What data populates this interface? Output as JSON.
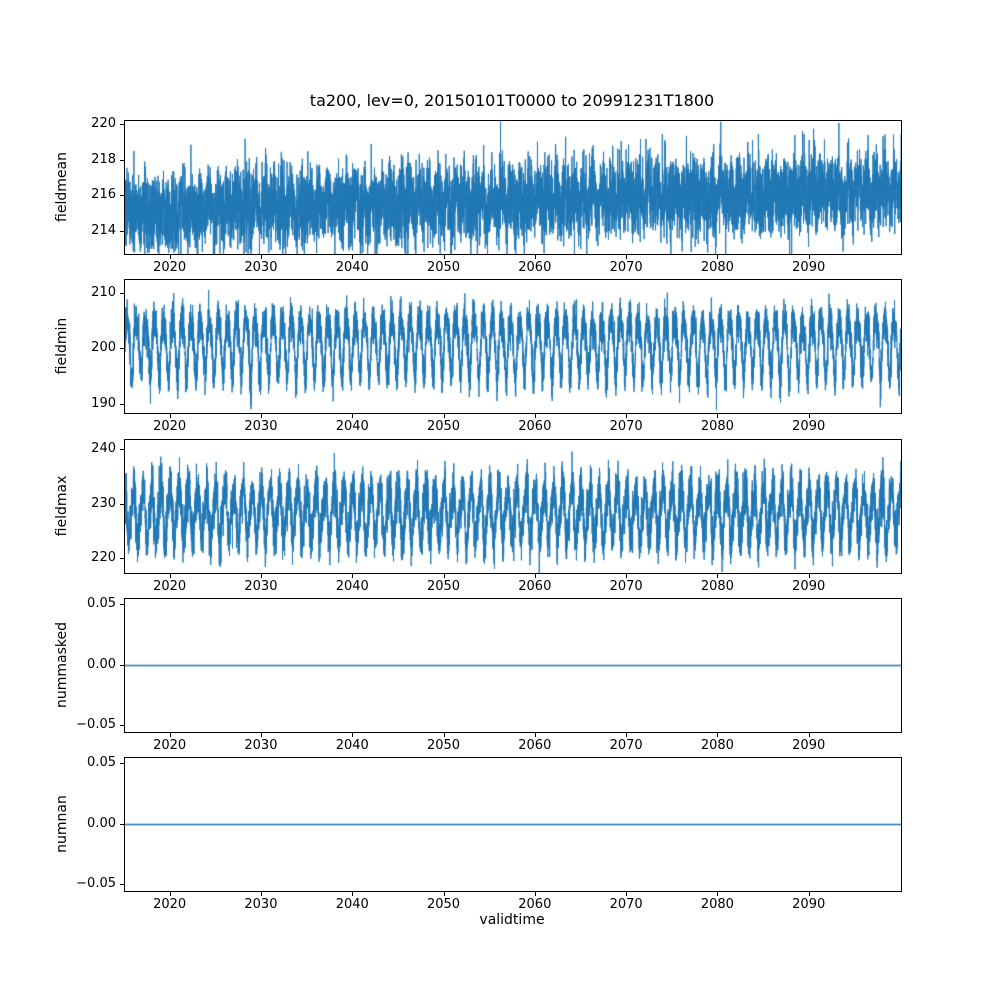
{
  "figure": {
    "title": "ta200, lev=0, 20150101T0000 to 20991231T1800",
    "xlabel": "validtime",
    "line_color": "#1f77b4",
    "xlim": [
      2015,
      2100
    ],
    "xticks": [
      {
        "v": 2020,
        "label": "2020"
      },
      {
        "v": 2030,
        "label": "2030"
      },
      {
        "v": 2040,
        "label": "2040"
      },
      {
        "v": 2050,
        "label": "2050"
      },
      {
        "v": 2060,
        "label": "2060"
      },
      {
        "v": 2070,
        "label": "2070"
      },
      {
        "v": 2080,
        "label": "2080"
      },
      {
        "v": 2090,
        "label": "2090"
      }
    ]
  },
  "chart_data": [
    {
      "type": "line",
      "name": "fieldmean",
      "ylabel": "fieldmean",
      "ylim": [
        212.8,
        220.2
      ],
      "yticks": [
        {
          "v": 214,
          "label": "214"
        },
        {
          "v": 216,
          "label": "216"
        },
        {
          "v": 218,
          "label": "218"
        },
        {
          "v": 220,
          "label": "220"
        }
      ],
      "observed_range": [
        212.8,
        219.8
      ],
      "description": "Dense noisy 6-hourly series around 215.3 rising slightly to about 216.4 by 2099",
      "series_gen": {
        "baseline": 215.2,
        "trend": 0.013,
        "components": [
          {
            "amp": 0.5,
            "freq": 1,
            "phase": 0
          }
        ],
        "noise": 1.05,
        "n": 8000,
        "seed": 101,
        "lw": 1
      }
    },
    {
      "type": "line",
      "name": "fieldmin",
      "ylabel": "fieldmin",
      "ylim": [
        188.5,
        212.5
      ],
      "yticks": [
        {
          "v": 190,
          "label": "190"
        },
        {
          "v": 200,
          "label": "200"
        },
        {
          "v": 210,
          "label": "210"
        }
      ],
      "observed_range": [
        189.5,
        211.5
      ],
      "description": "Strong annual oscillation between roughly 192 and 209 with spikes to 190 and 211, no trend",
      "series_gen": {
        "baseline": 201.0,
        "trend": 0,
        "components": [
          {
            "amp": 5.0,
            "freq": 1,
            "phase": 0
          },
          {
            "amp": 1.2,
            "freq": 2,
            "phase": 1.3
          }
        ],
        "noise": 1.7,
        "n": 9000,
        "seed": 202,
        "lw": 1
      },
      "points": []
    },
    {
      "type": "line",
      "name": "fieldmax",
      "ylabel": "fieldmax",
      "ylim": [
        217.5,
        241.8
      ],
      "yticks": [
        {
          "v": 220,
          "label": "220"
        },
        {
          "v": 230,
          "label": "230"
        },
        {
          "v": 240,
          "label": "240"
        }
      ],
      "observed_range": [
        218.5,
        241.0
      ],
      "description": "Annual oscillation around 228.5 between roughly 221 and 237 with spikes to 219 and 241, no trend",
      "series_gen": {
        "baseline": 228.5,
        "trend": 0,
        "components": [
          {
            "amp": 4.5,
            "freq": 1,
            "phase": 2.0
          },
          {
            "amp": 1.0,
            "freq": 2,
            "phase": 0.4
          }
        ],
        "noise": 2.1,
        "n": 9000,
        "seed": 303,
        "lw": 1
      },
      "points": []
    },
    {
      "type": "line",
      "name": "nummasked",
      "ylabel": "nummasked",
      "ylim": [
        -0.055,
        0.055
      ],
      "yticks": [
        {
          "v": -0.05,
          "label": "−0.05"
        },
        {
          "v": 0,
          "label": "0.00"
        },
        {
          "v": 0.05,
          "label": "0.05"
        }
      ],
      "observed_range": [
        0,
        0
      ],
      "description": "Constant zero for the entire period",
      "series_gen": {
        "baseline": 0,
        "trend": 0,
        "components": [],
        "noise": 0,
        "n": 2,
        "seed": 1,
        "lw": 1.5
      },
      "points": [
        [
          2015,
          0
        ],
        [
          2100,
          0
        ]
      ]
    },
    {
      "type": "line",
      "name": "numnan",
      "ylabel": "numnan",
      "ylim": [
        -0.055,
        0.055
      ],
      "yticks": [
        {
          "v": -0.05,
          "label": "−0.05"
        },
        {
          "v": 0,
          "label": "0.00"
        },
        {
          "v": 0.05,
          "label": "0.05"
        }
      ],
      "observed_range": [
        0,
        0
      ],
      "description": "Constant zero for the entire period",
      "series_gen": {
        "baseline": 0,
        "trend": 0,
        "components": [],
        "noise": 0,
        "n": 2,
        "seed": 2,
        "lw": 1.5
      },
      "points": [
        [
          2015,
          0
        ],
        [
          2100,
          0
        ]
      ]
    }
  ]
}
